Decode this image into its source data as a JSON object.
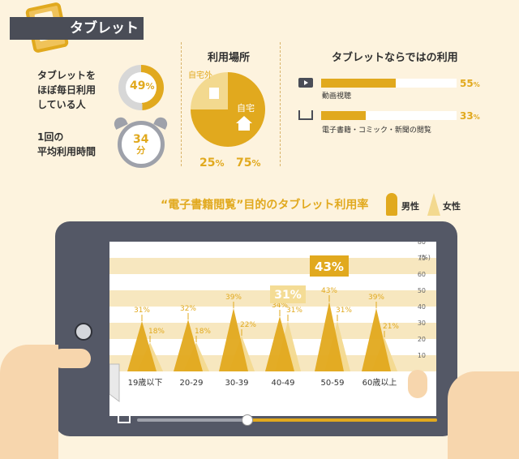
{
  "header": {
    "title": "タブレット"
  },
  "stats": [
    {
      "title_lines": [
        "タブレットを",
        "ほぼ毎日利用",
        "している人"
      ],
      "value": "49",
      "unit": "%",
      "fraction": 0.49
    },
    {
      "title_lines": [
        "1回の",
        "平均利用時間"
      ],
      "value": "34",
      "unit": "分"
    }
  ],
  "usage_place": {
    "title": "利用場所",
    "outside_label": "自宅外",
    "home_label": "自宅",
    "outside_percent": "25",
    "home_percent": "75",
    "unit": "%"
  },
  "tablet_uses": {
    "title": "タブレットならではの利用",
    "items": [
      {
        "label": "動画視聴",
        "value": "55",
        "unit": "%",
        "fraction": 0.55,
        "icon": "video-icon"
      },
      {
        "label": "電子書籍・コミック・新聞の閲覧",
        "value": "33",
        "unit": "%",
        "fraction": 0.33,
        "icon": "book-icon"
      }
    ]
  },
  "chart_data": {
    "type": "area",
    "title": "“電子書籍閲覧”目的のタブレット利用率",
    "legend": [
      "男性",
      "女性"
    ],
    "categories": [
      "19歳以下",
      "20-29",
      "30-39",
      "40-49",
      "50-59",
      "60歳以上"
    ],
    "series": [
      {
        "name": "男性",
        "values": [
          31,
          32,
          39,
          34,
          43,
          39
        ]
      },
      {
        "name": "女性",
        "values": [
          18,
          18,
          22,
          31,
          31,
          21
        ]
      }
    ],
    "highlight_labels": [
      "31%",
      "43%"
    ],
    "ylim": [
      0,
      80
    ],
    "y_ticks": [
      10,
      20,
      30,
      40,
      50,
      60,
      70,
      80
    ],
    "y_unit": "(%)",
    "colors": {
      "male": "#e1a91e",
      "female": "#f3d98f",
      "highlight": "#e1a91e",
      "highlight_soft": "#f4dc95"
    }
  }
}
